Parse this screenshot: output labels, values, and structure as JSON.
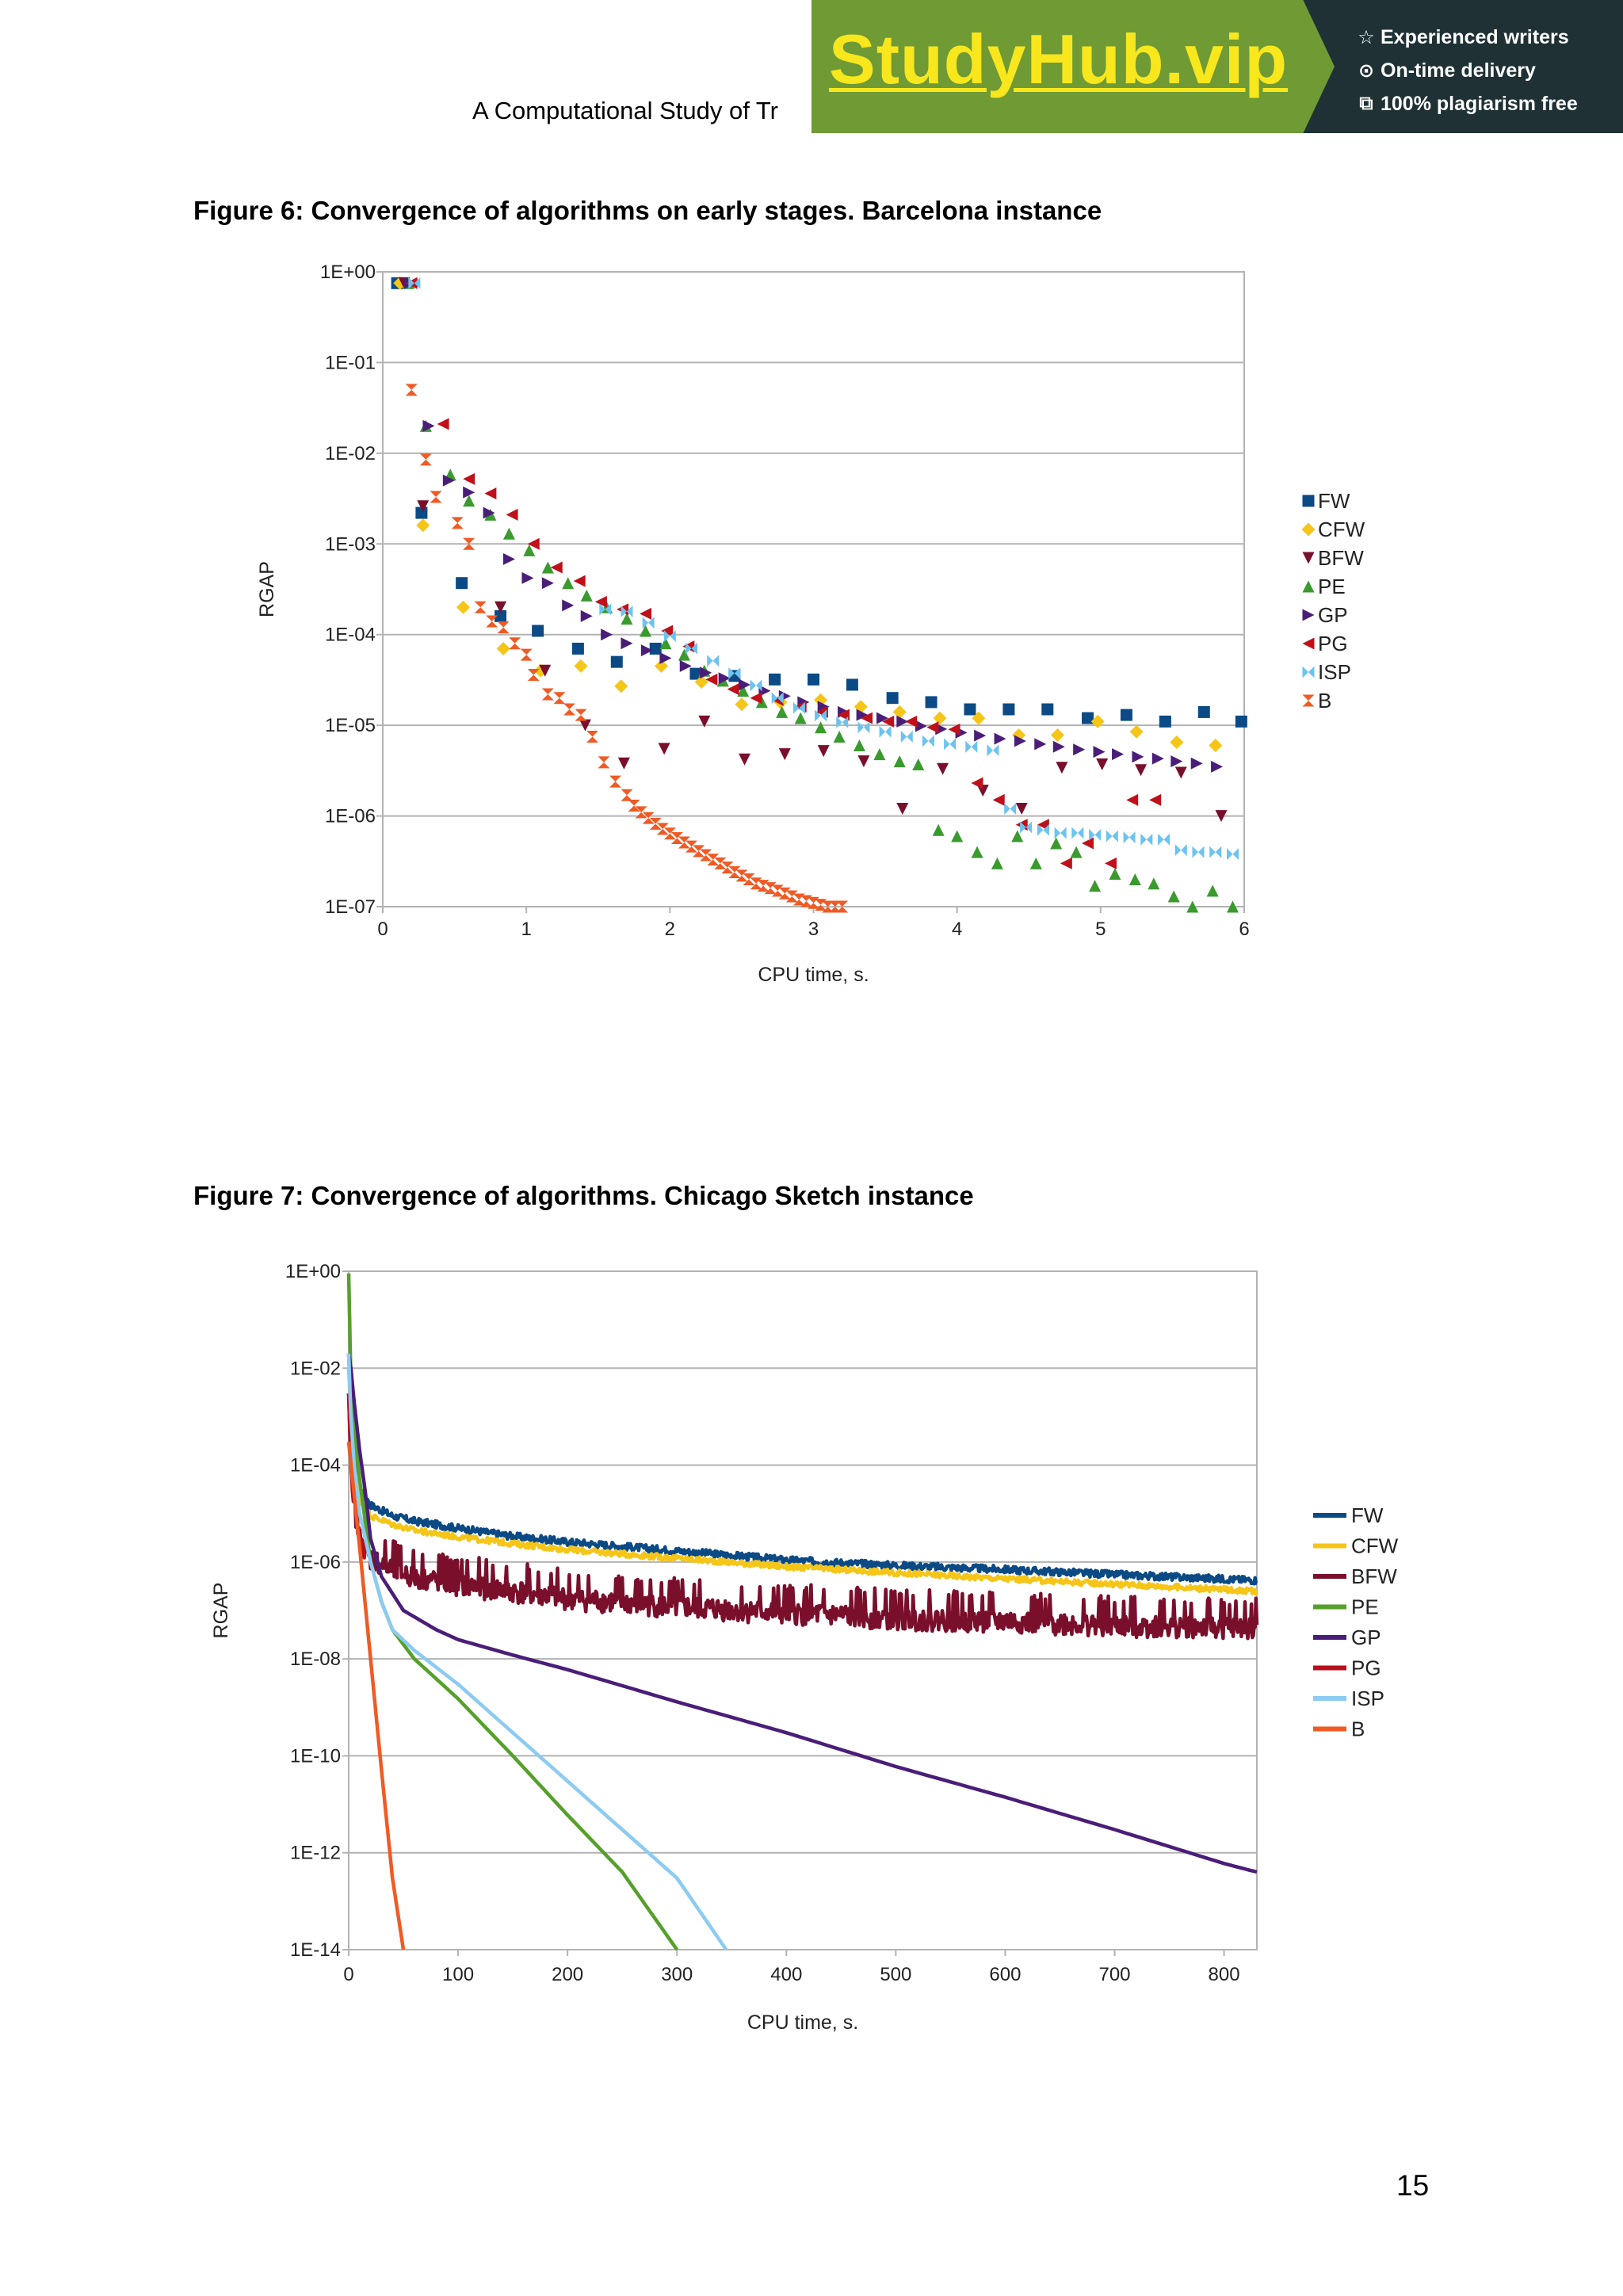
{
  "header": {
    "running_title": "A Computational Study of Tr"
  },
  "banner": {
    "logo": "StudyHub.vip",
    "features": [
      {
        "icon": "star-icon",
        "glyph": "☆",
        "label": "Experienced writers"
      },
      {
        "icon": "clock-icon",
        "glyph": "⊙",
        "label": "On-time delivery"
      },
      {
        "icon": "copy-icon",
        "glyph": "⧉",
        "label": "100% plagiarism free"
      }
    ],
    "colors": {
      "green": "#6f9a34",
      "dark": "#1f3135",
      "logo": "#f8e71c"
    }
  },
  "figures": [
    {
      "caption": "Figure 6: Convergence of algorithms on early stages. Barcelona instance"
    },
    {
      "caption": "Figure 7: Convergence of algorithms. Chicago Sketch instance"
    }
  ],
  "page_number": "15",
  "chart_data": [
    {
      "type": "scatter",
      "title": "",
      "xlabel": "CPU time, s.",
      "ylabel": "RGAP",
      "xlim": [
        0,
        6
      ],
      "ylim": [
        1e-07,
        1
      ],
      "yscale": "log",
      "grid": "horizontal",
      "legend_position": "right",
      "x_ticks": [
        "0",
        "1",
        "2",
        "3",
        "4",
        "5",
        "6"
      ],
      "y_ticks": [
        "1E+00",
        "1E-01",
        "1E-02",
        "1E-03",
        "1E-04",
        "1E-05",
        "1E-06",
        "1E-07"
      ],
      "series": [
        {
          "name": "FW",
          "marker": "square",
          "color": "#0b4a85",
          "x": [
            0.1,
            0.27,
            0.55,
            0.82,
            1.08,
            1.36,
            1.63,
            1.9,
            2.18,
            2.45,
            2.73,
            3.0,
            3.27,
            3.55,
            3.82,
            4.09,
            4.36,
            4.63,
            4.91,
            5.18,
            5.45,
            5.72,
            5.98
          ],
          "y": [
            0.75,
            0.0022,
            0.00037,
            0.00016,
            0.00011,
            7e-05,
            5e-05,
            7e-05,
            3.7e-05,
            3.5e-05,
            3.2e-05,
            3.2e-05,
            2.8e-05,
            2e-05,
            1.8e-05,
            1.5e-05,
            1.5e-05,
            1.5e-05,
            1.2e-05,
            1.3e-05,
            1.1e-05,
            1.4e-05,
            1.1e-05
          ]
        },
        {
          "name": "CFW",
          "marker": "diamond",
          "color": "#f5c518",
          "x": [
            0.12,
            0.28,
            0.56,
            0.84,
            1.1,
            1.38,
            1.66,
            1.94,
            2.22,
            2.5,
            2.77,
            3.05,
            3.33,
            3.6,
            3.88,
            4.15,
            4.43,
            4.7,
            4.98,
            5.25,
            5.53,
            5.8
          ],
          "y": [
            0.75,
            0.0016,
            0.0002,
            7e-05,
            4e-05,
            4.5e-05,
            2.7e-05,
            4.5e-05,
            3e-05,
            1.7e-05,
            1.8e-05,
            1.9e-05,
            1.6e-05,
            1.4e-05,
            1.2e-05,
            1.2e-05,
            7.8e-06,
            7.8e-06,
            1.1e-05,
            8.5e-06,
            6.5e-06,
            6e-06
          ]
        },
        {
          "name": "BFW",
          "marker": "triangle-down",
          "color": "#7a0f2c",
          "x": [
            0.15,
            0.28,
            0.82,
            1.13,
            1.41,
            1.68,
            1.96,
            2.24,
            2.52,
            2.8,
            3.07,
            3.35,
            3.62,
            3.9,
            4.18,
            4.45,
            4.73,
            5.01,
            5.28,
            5.56,
            5.84
          ],
          "y": [
            0.75,
            0.0026,
            0.0002,
            4e-05,
            1e-05,
            3.8e-06,
            5.5e-06,
            1.1e-05,
            4.2e-06,
            4.8e-06,
            5.2e-06,
            4e-06,
            1.2e-06,
            3.3e-06,
            1.9e-06,
            1.2e-06,
            3.4e-06,
            3.7e-06,
            3.2e-06,
            3e-06,
            1e-06
          ]
        },
        {
          "name": "PE",
          "marker": "triangle-up",
          "color": "#3a9a2e",
          "x": [
            0.18,
            0.3,
            0.47,
            0.6,
            0.75,
            0.88,
            1.02,
            1.15,
            1.29,
            1.42,
            1.56,
            1.7,
            1.83,
            1.97,
            2.1,
            2.24,
            2.37,
            2.51,
            2.64,
            2.78,
            2.91,
            3.05,
            3.18,
            3.32,
            3.46,
            3.6,
            3.73,
            3.87,
            4.0,
            4.14,
            4.28,
            4.42,
            4.55,
            4.69,
            4.83,
            4.96,
            5.1,
            5.24,
            5.37,
            5.51,
            5.64,
            5.78,
            5.92
          ],
          "y": [
            0.75,
            0.02,
            0.0058,
            0.003,
            0.0021,
            0.0013,
            0.00085,
            0.00055,
            0.00037,
            0.00027,
            0.0002,
            0.00015,
            0.00011,
            8e-05,
            6e-05,
            4e-05,
            3.1e-05,
            2.4e-05,
            1.8e-05,
            1.4e-05,
            1.2e-05,
            9.5e-06,
            7.5e-06,
            6e-06,
            4.8e-06,
            4e-06,
            3.7e-06,
            7e-07,
            6e-07,
            4e-07,
            3e-07,
            6e-07,
            3e-07,
            5e-07,
            4e-07,
            1.7e-07,
            2.3e-07,
            2e-07,
            1.8e-07,
            1.3e-07,
            8e-08,
            1.5e-07,
            1e-07
          ]
        },
        {
          "name": "GP",
          "marker": "triangle-right",
          "color": "#4a1e78",
          "x": [
            0.19,
            0.32,
            0.46,
            0.6,
            0.74,
            0.88,
            1.01,
            1.15,
            1.29,
            1.42,
            1.56,
            1.7,
            1.84,
            1.97,
            2.11,
            2.25,
            2.38,
            2.52,
            2.66,
            2.8,
            2.93,
            3.07,
            3.21,
            3.34,
            3.48,
            3.62,
            3.75,
            3.89,
            4.03,
            4.16,
            4.3,
            4.44,
            4.58,
            4.71,
            4.85,
            4.99,
            5.12,
            5.26,
            5.4,
            5.53,
            5.67,
            5.81
          ],
          "y": [
            0.75,
            0.02,
            0.005,
            0.0037,
            0.0022,
            0.00068,
            0.00042,
            0.00037,
            0.00021,
            0.00016,
            0.0001,
            8e-05,
            6.7e-05,
            5.5e-05,
            4.5e-05,
            3.8e-05,
            3.3e-05,
            2.8e-05,
            2.4e-05,
            2.1e-05,
            1.8e-05,
            1.6e-05,
            1.4e-05,
            1.3e-05,
            1.2e-05,
            1.1e-05,
            9.8e-06,
            9.1e-06,
            8.3e-06,
            7.7e-06,
            7.1e-06,
            6.7e-06,
            6.2e-06,
            5.8e-06,
            5.4e-06,
            5.1e-06,
            4.8e-06,
            4.5e-06,
            4.3e-06,
            4e-06,
            3.8e-06,
            3.5e-06
          ]
        },
        {
          "name": "PG",
          "marker": "triangle-left",
          "color": "#c0101a",
          "x": [
            0.2,
            0.42,
            0.6,
            0.75,
            0.9,
            1.05,
            1.21,
            1.37,
            1.52,
            1.67,
            1.83,
            1.98,
            2.13,
            2.29,
            2.44,
            2.6,
            2.75,
            2.91,
            3.06,
            3.21,
            3.37,
            3.52,
            3.68,
            3.83,
            3.98,
            4.14,
            4.29,
            4.45,
            4.6,
            4.76,
            4.91,
            5.07,
            5.22,
            5.38
          ],
          "y": [
            0.75,
            0.021,
            0.0052,
            0.0036,
            0.0021,
            0.001,
            0.00055,
            0.00039,
            0.00023,
            0.00019,
            0.00017,
            0.00011,
            7.4e-05,
            3.2e-05,
            2.5e-05,
            2e-05,
            1.9e-05,
            1.6e-05,
            1.4e-05,
            1.3e-05,
            1.2e-05,
            1.1e-05,
            1.1e-05,
            9.5e-06,
            9e-06,
            2.3e-06,
            1.5e-06,
            8e-07,
            8e-07,
            3e-07,
            5e-07,
            3e-07,
            1.5e-06,
            1.5e-06
          ]
        },
        {
          "name": "ISP",
          "marker": "bowtie",
          "color": "#6cc3f0",
          "x": [
            0.22,
            1.55,
            1.7,
            1.85,
            2.0,
            2.15,
            2.3,
            2.45,
            2.6,
            2.75,
            2.9,
            3.05,
            3.2,
            3.35,
            3.5,
            3.65,
            3.8,
            3.95,
            4.1,
            4.25,
            4.37,
            4.48,
            4.6,
            4.72,
            4.84,
            4.96,
            5.08,
            5.2,
            5.32,
            5.44,
            5.56,
            5.68,
            5.8,
            5.92
          ],
          "y": [
            0.75,
            0.00019,
            0.00018,
            0.000135,
            9.65e-05,
            7.05e-05,
            5.15e-05,
            3.75e-05,
            2.75e-05,
            2e-05,
            1.55e-05,
            1.28e-05,
            1.08e-05,
            9.5e-06,
            8.5e-06,
            7.5e-06,
            6.7e-06,
            6.2e-06,
            5.8e-06,
            5.3e-06,
            1.2e-06,
            7.5e-07,
            7e-07,
            6.5e-07,
            6.5e-07,
            6.2e-07,
            6e-07,
            5.8e-07,
            5.5e-07,
            5.5e-07,
            4.2e-07,
            4e-07,
            4e-07,
            3.8e-07
          ]
        },
        {
          "name": "B",
          "marker": "hourglass",
          "color": "#f05a24",
          "x": [
            0.2,
            0.3,
            0.37,
            0.52,
            0.6,
            0.68,
            0.76,
            0.84,
            0.92,
            1.0,
            1.05,
            1.15,
            1.23,
            1.3,
            1.38,
            1.46,
            1.54,
            1.62,
            1.7,
            1.75,
            1.8,
            1.85,
            1.9,
            1.95,
            2.0,
            2.05,
            2.1,
            2.15,
            2.2,
            2.25,
            2.3,
            2.35,
            2.4,
            2.45,
            2.5,
            2.55,
            2.6,
            2.65,
            2.7,
            2.75,
            2.8,
            2.85,
            2.9,
            2.95,
            3.0,
            3.05,
            3.1,
            3.15,
            3.2
          ],
          "y": [
            0.05,
            0.0085,
            0.0033,
            0.0017,
            0.001,
            0.0002,
            0.00014,
            0.00012,
            8e-05,
            6e-05,
            3.6e-05,
            2.2e-05,
            2e-05,
            1.5e-05,
            1.3e-05,
            7.5e-06,
            3.9e-06,
            2.4e-06,
            1.7e-06,
            1.3e-06,
            1.1e-06,
            9.5e-07,
            8.2e-07,
            7.2e-07,
            6.4e-07,
            5.7e-07,
            5.1e-07,
            4.6e-07,
            4.1e-07,
            3.7e-07,
            3.3e-07,
            3e-07,
            2.7e-07,
            2.4e-07,
            2.2e-07,
            2e-07,
            1.8e-07,
            1.7e-07,
            1.6e-07,
            1.5e-07,
            1.4e-07,
            1.3e-07,
            1.2e-07,
            1.15e-07,
            1.1e-07,
            1.05e-07,
            1e-07,
            1e-07,
            1e-07
          ]
        }
      ]
    },
    {
      "type": "line",
      "title": "",
      "xlabel": "CPU time, s.",
      "ylabel": "RGAP",
      "xlim": [
        0,
        830
      ],
      "ylim": [
        1e-14,
        1
      ],
      "yscale": "log",
      "grid": "horizontal",
      "legend_position": "right",
      "x_ticks": [
        "0",
        "100",
        "200",
        "300",
        "400",
        "500",
        "600",
        "700",
        "800"
      ],
      "y_ticks": [
        "1E+00",
        "1E-02",
        "1E-04",
        "1E-06",
        "1E-08",
        "1E-10",
        "1E-12",
        "1E-14"
      ],
      "series": [
        {
          "name": "FW",
          "color": "#0b4a85",
          "noise": 0.15,
          "x": [
            0,
            2,
            5,
            10,
            20,
            40,
            60,
            100,
            150,
            200,
            300,
            400,
            500,
            600,
            700,
            830
          ],
          "y": [
            0.02,
            0.002,
            0.0002,
            3e-05,
            1.5e-05,
            9e-06,
            7e-06,
            5e-06,
            3.4e-06,
            2.6e-06,
            1.7e-06,
            1.1e-06,
            8.5e-07,
            7e-07,
            5.5e-07,
            4.2e-07
          ]
        },
        {
          "name": "CFW",
          "color": "#f5c518",
          "noise": 0.12,
          "x": [
            0,
            2,
            5,
            10,
            20,
            40,
            60,
            100,
            150,
            200,
            300,
            400,
            500,
            600,
            700,
            830
          ],
          "y": [
            0.01,
            0.001,
            0.0001,
            2e-05,
            9e-06,
            6e-06,
            4.5e-06,
            3.3e-06,
            2.4e-06,
            1.8e-06,
            1.2e-06,
            8e-07,
            6e-07,
            4.5e-07,
            3.5e-07,
            2.5e-07
          ]
        },
        {
          "name": "BFW",
          "color": "#7a0f2c",
          "noise": 0.5,
          "x": [
            0,
            2,
            5,
            10,
            20,
            40,
            60,
            100,
            150,
            200,
            300,
            400,
            500,
            600,
            700,
            830
          ],
          "y": [
            0.003,
            0.0001,
            1.5e-05,
            3e-06,
            1.2e-06,
            7e-07,
            5e-07,
            3.5e-07,
            2.5e-07,
            1.8e-07,
            1.2e-07,
            9e-08,
            7e-08,
            6e-08,
            5e-08,
            4.5e-08
          ]
        },
        {
          "name": "PE",
          "color": "#55a02a",
          "noise": 0,
          "x": [
            0,
            2,
            5,
            10,
            20,
            30,
            40,
            60,
            100,
            150,
            200,
            250,
            300
          ],
          "y": [
            0.9,
            0.005,
            0.0005,
            5e-05,
            1e-06,
            1.5e-07,
            4e-08,
            1e-08,
            1.5e-09,
            1e-10,
            6e-12,
            4e-13,
            1e-14
          ]
        },
        {
          "name": "GP",
          "color": "#4a1e78",
          "noise": 0,
          "x": [
            0,
            2,
            5,
            10,
            15,
            20,
            30,
            50,
            80,
            100,
            150,
            200,
            300,
            400,
            500,
            600,
            700,
            800,
            830
          ],
          "y": [
            0.02,
            0.01,
            0.002,
            0.0002,
            3e-05,
            3e-06,
            5e-07,
            1e-07,
            4e-08,
            2.5e-08,
            1.2e-08,
            6e-09,
            1.3e-09,
            3e-10,
            6e-11,
            1.4e-11,
            3e-12,
            6e-13,
            4e-13
          ]
        },
        {
          "name": "PG",
          "color": "#b5101c",
          "noise": 0.3,
          "x": [
            0,
            2,
            5,
            10,
            15
          ],
          "y": [
            0.003,
            0.0001,
            1.5e-05,
            3e-06,
            1.5e-06
          ]
        },
        {
          "name": "ISP",
          "color": "#8ccbf2",
          "noise": 0,
          "x": [
            0,
            2,
            5,
            10,
            20,
            30,
            40,
            60,
            100,
            150,
            200,
            250,
            300,
            345
          ],
          "y": [
            0.02,
            0.001,
            0.0001,
            1e-05,
            1e-06,
            1.5e-07,
            4e-08,
            1.5e-08,
            3e-09,
            3e-10,
            3e-11,
            3e-12,
            3e-13,
            1e-14
          ]
        },
        {
          "name": "B",
          "color": "#f05a24",
          "noise": 0,
          "x": [
            0,
            10,
            20,
            30,
            40,
            50
          ],
          "y": [
            0.0003,
            2e-06,
            1e-08,
            5e-11,
            3e-13,
            1e-14
          ]
        }
      ]
    }
  ]
}
